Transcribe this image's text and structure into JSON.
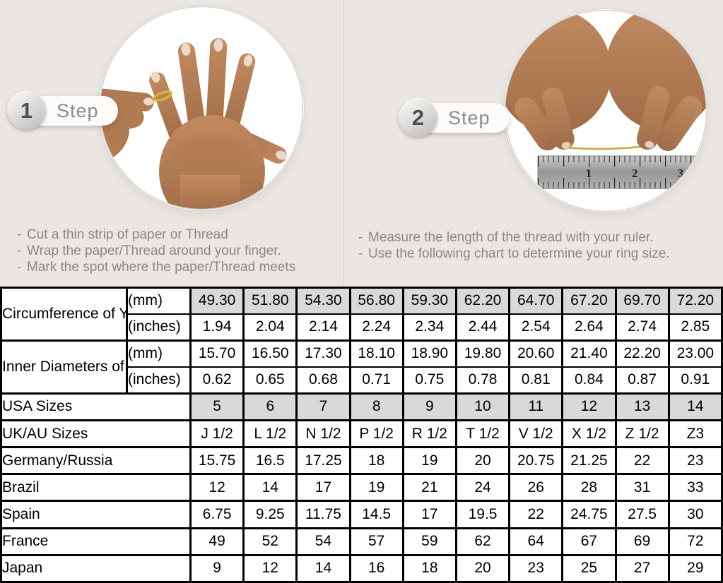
{
  "bullet": "-",
  "steps": [
    {
      "number": "1",
      "label": "Step",
      "instructions": [
        "Cut a thin strip of paper or Thread",
        "Wrap the paper/Thread around your finger.",
        "Mark the spot where the paper/Thread meets"
      ]
    },
    {
      "number": "2",
      "label": "Step",
      "instructions": [
        "Measure the length of the thread with your ruler.",
        "Use the following chart to determine your ring size."
      ]
    }
  ],
  "table": {
    "groups": [
      {
        "label": "Circumference of Your Finger",
        "rows": [
          {
            "unit": "(mm)",
            "highlight": true,
            "values": [
              "49.30",
              "51.80",
              "54.30",
              "56.80",
              "59.30",
              "62.20",
              "64.70",
              "67.20",
              "69.70",
              "72.20"
            ]
          },
          {
            "unit": "(inches)",
            "highlight": false,
            "values": [
              "1.94",
              "2.04",
              "2.14",
              "2.24",
              "2.34",
              "2.44",
              "2.54",
              "2.64",
              "2.74",
              "2.85"
            ]
          }
        ]
      },
      {
        "label": "Inner Diameters of Rings",
        "rows": [
          {
            "unit": "(mm)",
            "highlight": false,
            "values": [
              "15.70",
              "16.50",
              "17.30",
              "18.10",
              "18.90",
              "19.80",
              "20.60",
              "21.40",
              "22.20",
              "23.00"
            ]
          },
          {
            "unit": "(inches)",
            "highlight": false,
            "values": [
              "0.62",
              "0.65",
              "0.68",
              "0.71",
              "0.75",
              "0.78",
              "0.81",
              "0.84",
              "0.87",
              "0.91"
            ]
          }
        ]
      }
    ],
    "size_rows": [
      {
        "label": "USA Sizes",
        "highlight": true,
        "values": [
          "5",
          "6",
          "7",
          "8",
          "9",
          "10",
          "11",
          "12",
          "13",
          "14"
        ]
      },
      {
        "label": "UK/AU Sizes",
        "highlight": false,
        "values": [
          "J 1/2",
          "L 1/2",
          "N 1/2",
          "P 1/2",
          "R 1/2",
          "T 1/2",
          "V 1/2",
          "X 1/2",
          "Z 1/2",
          "Z3"
        ]
      },
      {
        "label": "Germany/Russia",
        "highlight": false,
        "values": [
          "15.75",
          "16.5",
          "17.25",
          "18",
          "19",
          "20",
          "20.75",
          "21.25",
          "22",
          "23"
        ]
      },
      {
        "label": "Brazil",
        "highlight": false,
        "values": [
          "12",
          "14",
          "17",
          "19",
          "21",
          "24",
          "26",
          "28",
          "31",
          "33"
        ]
      },
      {
        "label": "Spain",
        "highlight": false,
        "values": [
          "6.75",
          "9.25",
          "11.75",
          "14.5",
          "17",
          "19.5",
          "22",
          "24.75",
          "27.5",
          "30"
        ]
      },
      {
        "label": "France",
        "highlight": false,
        "values": [
          "49",
          "52",
          "54",
          "57",
          "59",
          "62",
          "64",
          "67",
          "69",
          "72"
        ]
      },
      {
        "label": "Japan",
        "highlight": false,
        "values": [
          "9",
          "12",
          "14",
          "16",
          "18",
          "20",
          "23",
          "25",
          "27",
          "29"
        ]
      }
    ]
  },
  "colors": {
    "background": "#eae7e2",
    "table_highlight": "#d9d9d9",
    "table_border": "#000000",
    "step_text": "#8c8c8c",
    "instruction_text": "#8b8884",
    "thread_gold": "#cfa43b"
  }
}
